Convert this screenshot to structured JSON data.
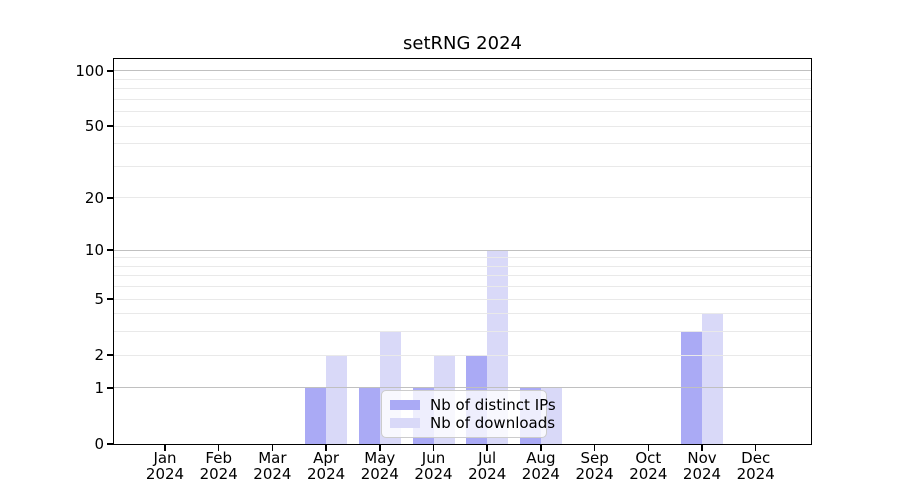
{
  "chart_data": {
    "type": "bar",
    "title": "setRNG 2024",
    "categories": [
      "Jan 2024",
      "Feb 2024",
      "Mar 2024",
      "Apr 2024",
      "May 2024",
      "Jun 2024",
      "Jul 2024",
      "Aug 2024",
      "Sep 2024",
      "Oct 2024",
      "Nov 2024",
      "Dec 2024"
    ],
    "series": [
      {
        "name": "Nb of distinct IPs",
        "color": "#aaaaf5",
        "values": [
          0,
          0,
          0,
          1,
          1,
          1,
          2,
          1,
          0,
          0,
          3,
          0
        ]
      },
      {
        "name": "Nb of downloads",
        "color": "#d9d9f8",
        "values": [
          0,
          0,
          0,
          2,
          3,
          2,
          10,
          1,
          0,
          0,
          4,
          0
        ]
      }
    ],
    "xlabel": "",
    "ylabel": "",
    "y_scale": "log1p",
    "ylim": [
      0,
      116
    ],
    "y_ticks": [
      0,
      1,
      2,
      5,
      10,
      20,
      50,
      100
    ],
    "grid": "on",
    "grid_major_values": [
      1,
      10,
      100
    ],
    "grid_minor_values": [
      2,
      3,
      4,
      5,
      6,
      7,
      8,
      9,
      20,
      30,
      40,
      50,
      60,
      70,
      80,
      90
    ],
    "legend_position": "inside lower center"
  },
  "colors": {
    "background": "#ffffff",
    "axis": "#000000",
    "grid_major": "#c0c0c0",
    "grid_minor": "#e9e9e9",
    "legend_border": "#cccccc",
    "legend_background": "rgba(255,255,255,0.8)"
  }
}
